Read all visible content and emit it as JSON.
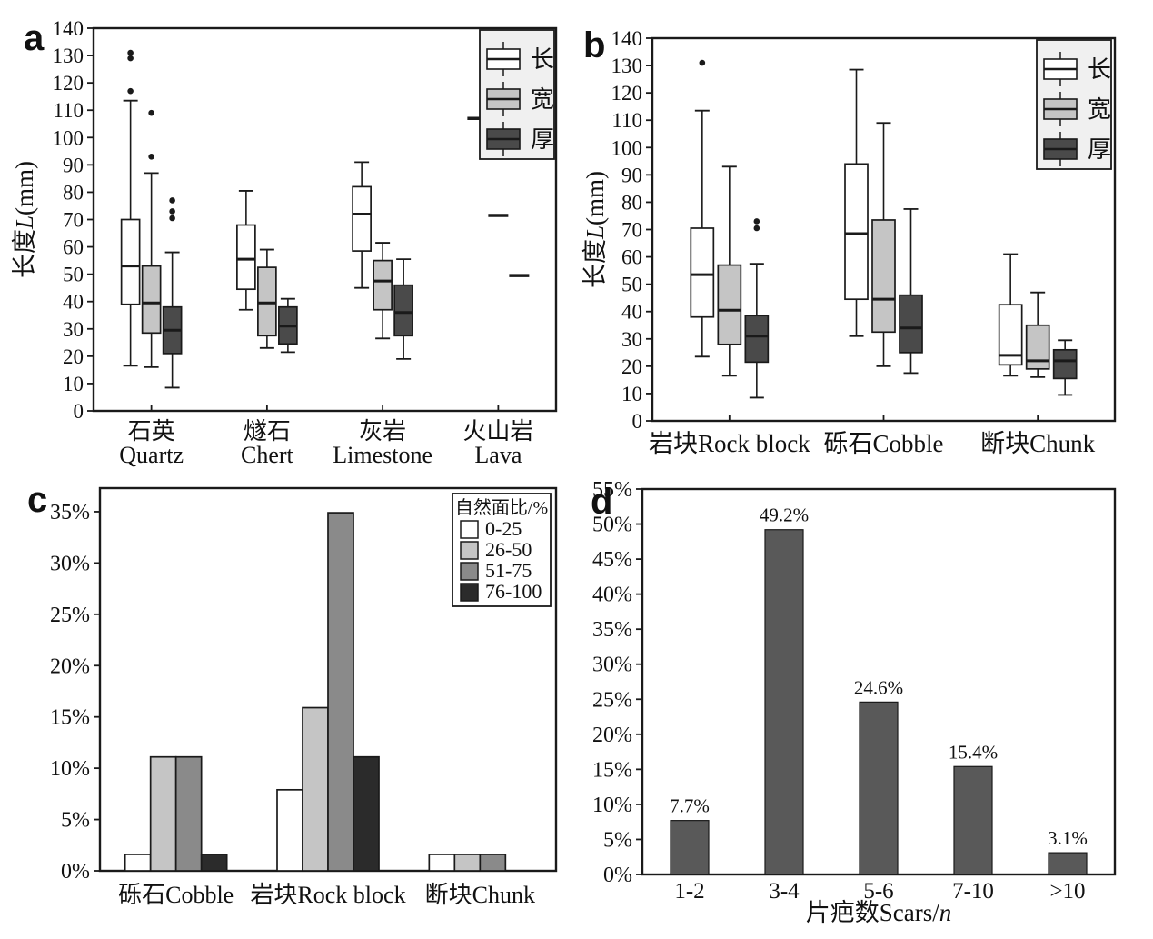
{
  "figure": {
    "background": "#ffffff",
    "panels": [
      {
        "label": "a"
      },
      {
        "label": "b"
      },
      {
        "label": "c"
      },
      {
        "label": "d"
      }
    ]
  },
  "colors": {
    "stroke": "#1a1a1a",
    "length_fill": "#ffffff",
    "width_fill": "#c5c5c5",
    "thickness_fill": "#4a4a4a",
    "legend_bg": "#f0f0f0",
    "bar_fill": "#595959",
    "ratio_0_25": "#ffffff",
    "ratio_26_50": "#c5c5c5",
    "ratio_51_75": "#8a8a8a",
    "ratio_76_100": "#2b2b2b"
  },
  "chart_data": [
    {
      "panel": "a",
      "type": "boxplot",
      "ylabel": {
        "prefix": "长度",
        "italic": "L",
        "suffix": "(mm)"
      },
      "ylim": [
        0,
        140
      ],
      "yticks": [
        0,
        10,
        20,
        30,
        40,
        50,
        60,
        70,
        80,
        90,
        100,
        110,
        120,
        130,
        140
      ],
      "ytick_suffix": "",
      "categories": [
        {
          "line1": "石英",
          "line2": "Quartz"
        },
        {
          "line1": "燧石",
          "line2": "Chert"
        },
        {
          "line1": "灰岩",
          "line2": "Limestone"
        },
        {
          "line1": "火山岩",
          "line2": "Lava"
        }
      ],
      "legend": {
        "items": [
          {
            "label": "长",
            "fill": "#ffffff"
          },
          {
            "label": "宽",
            "fill": "#c5c5c5"
          },
          {
            "label": "厚",
            "fill": "#4a4a4a"
          }
        ]
      },
      "series": [
        {
          "name": "长",
          "fill": "#ffffff",
          "stats": [
            {
              "low": 16.5,
              "q1": 39,
              "med": 53,
              "q3": 70,
              "high": 113.5,
              "outliers": [
                117,
                129,
                131
              ]
            },
            {
              "low": 37,
              "q1": 44.5,
              "med": 55.5,
              "q3": 68,
              "high": 80.5
            },
            {
              "low": 45,
              "q1": 58.5,
              "med": 72,
              "q3": 82,
              "high": 91
            },
            {
              "single": 107
            }
          ]
        },
        {
          "name": "宽",
          "fill": "#c5c5c5",
          "stats": [
            {
              "low": 16,
              "q1": 28.5,
              "med": 39.5,
              "q3": 53,
              "high": 87,
              "outliers": [
                93,
                109
              ]
            },
            {
              "low": 23,
              "q1": 27.5,
              "med": 39.5,
              "q3": 52.5,
              "high": 59
            },
            {
              "low": 26.5,
              "q1": 37,
              "med": 47.5,
              "q3": 55,
              "high": 61.5
            },
            {
              "single": 71.5
            }
          ]
        },
        {
          "name": "厚",
          "fill": "#4a4a4a",
          "stats": [
            {
              "low": 8.5,
              "q1": 21,
              "med": 29.5,
              "q3": 38,
              "high": 58,
              "outliers": [
                70.5,
                73,
                77
              ]
            },
            {
              "low": 21.5,
              "q1": 24.5,
              "med": 31,
              "q3": 38,
              "high": 41
            },
            {
              "low": 19,
              "q1": 27.5,
              "med": 36,
              "q3": 46,
              "high": 55.5
            },
            {
              "single": 49.5
            }
          ]
        }
      ]
    },
    {
      "panel": "b",
      "type": "boxplot",
      "ylabel": {
        "prefix": "长度",
        "italic": "L",
        "suffix": "(mm)"
      },
      "ylim": [
        0,
        140
      ],
      "yticks": [
        0,
        10,
        20,
        30,
        40,
        50,
        60,
        70,
        80,
        90,
        100,
        110,
        120,
        130,
        140
      ],
      "ytick_suffix": "",
      "categories": [
        "岩块Rock block",
        "砾石Cobble",
        "断块Chunk"
      ],
      "legend": {
        "items": [
          {
            "label": "长",
            "fill": "#ffffff"
          },
          {
            "label": "宽",
            "fill": "#c5c5c5"
          },
          {
            "label": "厚",
            "fill": "#4a4a4a"
          }
        ]
      },
      "series": [
        {
          "name": "长",
          "fill": "#ffffff",
          "stats": [
            {
              "low": 23.5,
              "q1": 38,
              "med": 53.5,
              "q3": 70.5,
              "high": 113.5,
              "outliers": [
                131
              ]
            },
            {
              "low": 31,
              "q1": 44.5,
              "med": 68.5,
              "q3": 94,
              "high": 128.5
            },
            {
              "low": 16.5,
              "q1": 20.5,
              "med": 24,
              "q3": 42.5,
              "high": 61
            }
          ]
        },
        {
          "name": "宽",
          "fill": "#c5c5c5",
          "stats": [
            {
              "low": 16.5,
              "q1": 28,
              "med": 40.5,
              "q3": 57,
              "high": 93
            },
            {
              "low": 20,
              "q1": 32.5,
              "med": 44.5,
              "q3": 73.5,
              "high": 109
            },
            {
              "low": 16,
              "q1": 19,
              "med": 22,
              "q3": 35,
              "high": 47
            }
          ]
        },
        {
          "name": "厚",
          "fill": "#4a4a4a",
          "stats": [
            {
              "low": 8.5,
              "q1": 21.5,
              "med": 31,
              "q3": 38.5,
              "high": 57.5,
              "outliers": [
                70.5,
                73
              ]
            },
            {
              "low": 17.5,
              "q1": 25,
              "med": 34,
              "q3": 46,
              "high": 77.5
            },
            {
              "low": 9.5,
              "q1": 15.5,
              "med": 22,
              "q3": 26,
              "high": 29.5
            }
          ]
        }
      ]
    },
    {
      "panel": "c",
      "type": "bar_grouped",
      "ylim": [
        0,
        37.3
      ],
      "yticks": [
        0,
        5,
        10,
        15,
        20,
        25,
        30,
        35
      ],
      "ytick_suffix": "%",
      "categories": [
        "砾石Cobble",
        "岩块Rock block",
        "断块Chunk"
      ],
      "legend": {
        "title": "自然面比/%",
        "items": [
          {
            "label": "0-25",
            "fill": "#ffffff"
          },
          {
            "label": "26-50",
            "fill": "#c5c5c5"
          },
          {
            "label": "51-75",
            "fill": "#8a8a8a"
          },
          {
            "label": "76-100",
            "fill": "#2b2b2b"
          }
        ]
      },
      "series": [
        {
          "name": "0-25",
          "fill": "#ffffff",
          "values": [
            1.6,
            7.9,
            1.6
          ]
        },
        {
          "name": "26-50",
          "fill": "#c5c5c5",
          "values": [
            11.1,
            15.9,
            1.6
          ]
        },
        {
          "name": "51-75",
          "fill": "#8a8a8a",
          "values": [
            11.1,
            34.9,
            1.6
          ]
        },
        {
          "name": "76-100",
          "fill": "#2b2b2b",
          "values": [
            1.6,
            11.1,
            0
          ]
        }
      ]
    },
    {
      "panel": "d",
      "type": "bar",
      "xlabel": {
        "prefix": "片疤数Scars/",
        "italic": "n",
        "suffix": ""
      },
      "ylim": [
        0,
        55
      ],
      "yticks": [
        0,
        5,
        10,
        15,
        20,
        25,
        30,
        35,
        40,
        45,
        50,
        55
      ],
      "ytick_suffix": "%",
      "categories": [
        "1-2",
        "3-4",
        "5-6",
        "7-10",
        ">10"
      ],
      "values": [
        7.7,
        49.2,
        24.6,
        15.4,
        3.1
      ],
      "value_labels": [
        "7.7%",
        "49.2%",
        "24.6%",
        "15.4%",
        "3.1%"
      ],
      "bar_fill": "#595959"
    }
  ]
}
